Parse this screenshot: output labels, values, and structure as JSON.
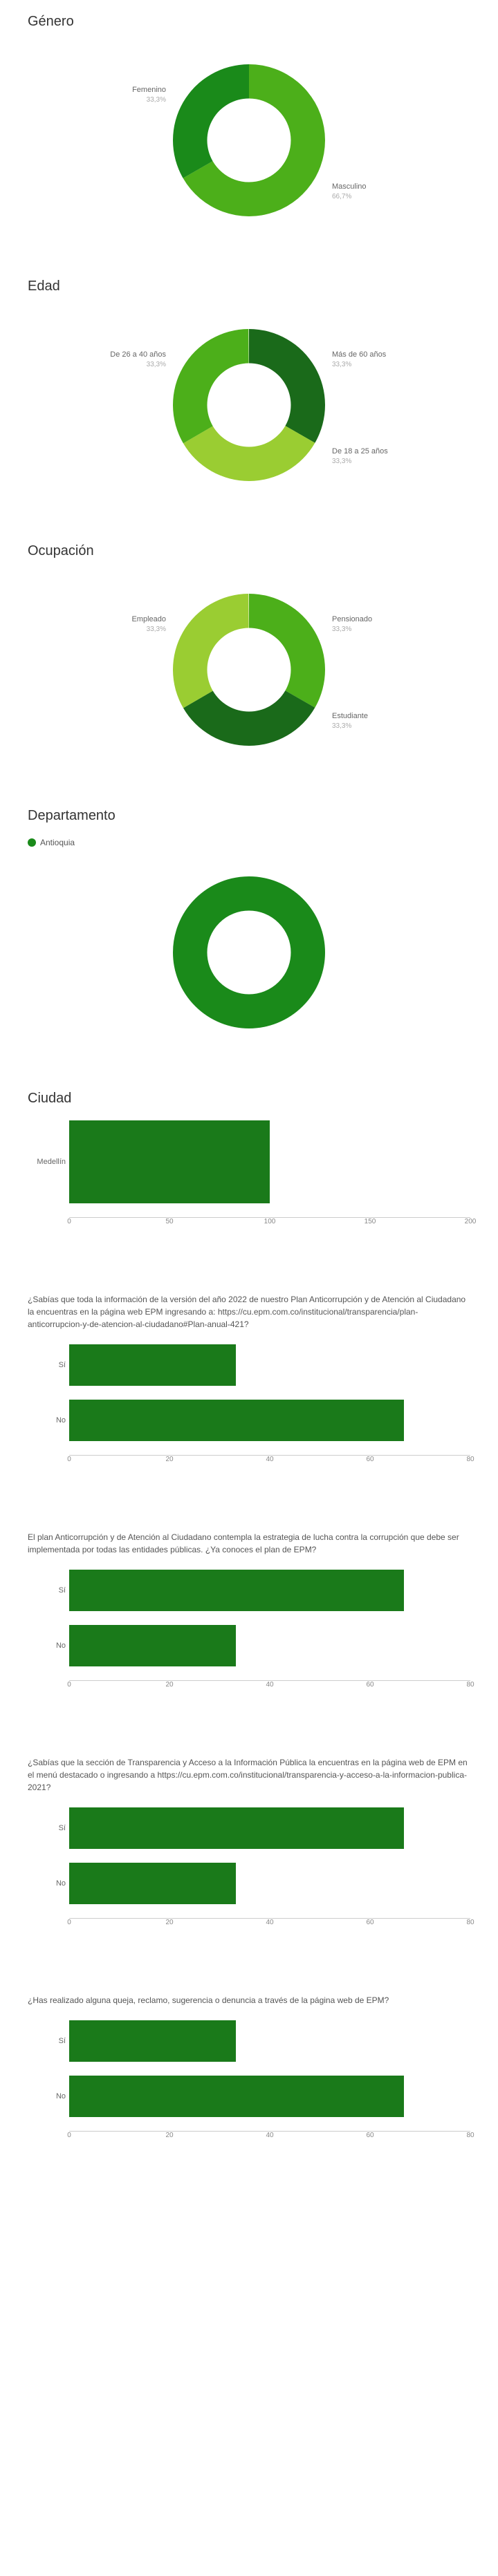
{
  "charts": [
    {
      "id": "genero",
      "type": "donut",
      "title": "Género",
      "inner_ratio": 0.55,
      "slices": [
        {
          "label": "Masculino",
          "pct": 66.7,
          "color": "#4caf1a",
          "label_pos": "right-bottom"
        },
        {
          "label": "Femenino",
          "pct": 33.3,
          "color": "#1a8a1a",
          "label_pos": "left-top"
        }
      ]
    },
    {
      "id": "edad",
      "type": "donut",
      "title": "Edad",
      "inner_ratio": 0.55,
      "slices": [
        {
          "label": "Más de 60 años",
          "pct": 33.3,
          "color": "#1a6a1a",
          "label_pos": "right-top"
        },
        {
          "label": "De 18 a 25 años",
          "pct": 33.3,
          "color": "#9acd32",
          "label_pos": "right-bottom"
        },
        {
          "label": "De 26 a 40 años",
          "pct": 33.3,
          "color": "#4caf1a",
          "label_pos": "left-top"
        }
      ]
    },
    {
      "id": "ocupacion",
      "type": "donut",
      "title": "Ocupación",
      "inner_ratio": 0.55,
      "slices": [
        {
          "label": "Pensionado",
          "pct": 33.3,
          "color": "#4caf1a",
          "label_pos": "right-top"
        },
        {
          "label": "Estudiante",
          "pct": 33.3,
          "color": "#1a6a1a",
          "label_pos": "right-bottom"
        },
        {
          "label": "Empleado",
          "pct": 33.3,
          "color": "#9acd32",
          "label_pos": "left-top"
        }
      ]
    },
    {
      "id": "departamento",
      "type": "donut",
      "title": "Departamento",
      "inner_ratio": 0.55,
      "legend": [
        {
          "label": "Antioquia",
          "color": "#1a8a1a"
        }
      ],
      "slices": [
        {
          "label": "",
          "pct": 100,
          "color": "#1a8a1a",
          "label_pos": "none"
        }
      ]
    },
    {
      "id": "ciudad",
      "type": "hbar-single",
      "title": "Ciudad",
      "xmax": 200,
      "xticks": [
        0,
        50,
        100,
        150,
        200
      ],
      "bars": [
        {
          "label": "Medellín",
          "value": 100,
          "color": "#1a7a1a"
        }
      ]
    },
    {
      "id": "q1",
      "type": "hbar",
      "title": "¿Sabías que toda la información de la versión del año 2022 de nuestro Plan Anticorrupción y de Atención al Ciudadano la encuentras en la página web EPM ingresando a: https://cu.epm.com.co/institucional/transparencia/plan-anticorrupcion-y-de-atencion-al-ciudadano#Plan-anual-421?",
      "xmax": 80,
      "xticks": [
        0,
        20,
        40,
        60,
        80
      ],
      "bars": [
        {
          "label": "Sí",
          "value": 33.3,
          "color": "#1a7a1a"
        },
        {
          "label": "No",
          "value": 66.7,
          "color": "#1a7a1a"
        }
      ]
    },
    {
      "id": "q2",
      "type": "hbar",
      "title": "El plan Anticorrupción y de Atención al Ciudadano contempla la estrategia de lucha contra la corrupción que debe ser implementada por todas las entidades públicas. ¿Ya conoces el plan de EPM?",
      "xmax": 80,
      "xticks": [
        0,
        20,
        40,
        60,
        80
      ],
      "bars": [
        {
          "label": "Sí",
          "value": 66.7,
          "color": "#1a7a1a"
        },
        {
          "label": "No",
          "value": 33.3,
          "color": "#1a7a1a"
        }
      ]
    },
    {
      "id": "q3",
      "type": "hbar",
      "title": "¿Sabías que la sección de Transparencia y Acceso a la Información Pública la encuentras en la página web de EPM en el menú destacado o ingresando a https://cu.epm.com.co/institucional/transparencia-y-acceso-a-la-informacion-publica-2021?",
      "xmax": 80,
      "xticks": [
        0,
        20,
        40,
        60,
        80
      ],
      "bars": [
        {
          "label": "Sí",
          "value": 66.7,
          "color": "#1a7a1a"
        },
        {
          "label": "No",
          "value": 33.3,
          "color": "#1a7a1a"
        }
      ]
    },
    {
      "id": "q4",
      "type": "hbar",
      "title": "¿Has realizado alguna queja, reclamo, sugerencia o denuncia a través de la página web de EPM?",
      "xmax": 80,
      "xticks": [
        0,
        20,
        40,
        60,
        80
      ],
      "bars": [
        {
          "label": "Sí",
          "value": 33.3,
          "color": "#1a7a1a"
        },
        {
          "label": "No",
          "value": 66.7,
          "color": "#1a7a1a"
        }
      ]
    }
  ],
  "style": {
    "background": "#ffffff",
    "title_color": "#333333",
    "label_color": "#666666",
    "axis_color": "#cccccc",
    "tick_color": "#888888"
  }
}
